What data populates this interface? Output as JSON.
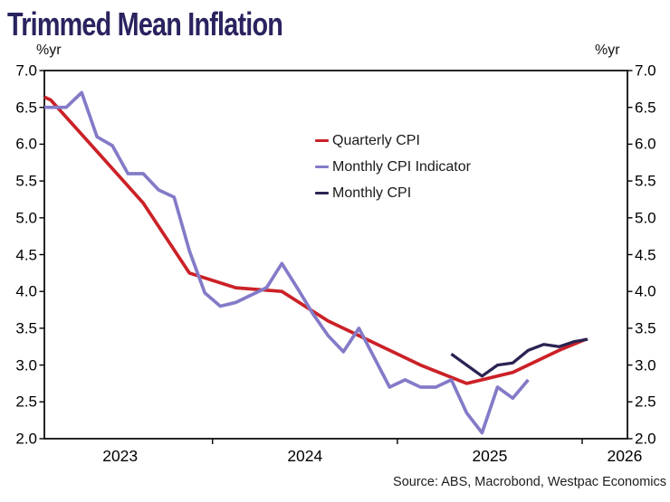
{
  "header": {
    "title": "Trimmed Mean Inflation"
  },
  "source_note": "Source: ABS, Macrobond, Westpac Economics",
  "chart_data": {
    "type": "line",
    "title": "Trimmed Mean Inflation",
    "y_unit_left": "%yr",
    "y_unit_right": "%yr",
    "grid": false,
    "legend_position": "inside-top-center",
    "y_range": [
      2.0,
      7.0
    ],
    "x_range": [
      2023.09,
      2026.245
    ],
    "y_ticks": [
      {
        "value": 7.0,
        "label": "7.0"
      },
      {
        "value": 6.5,
        "label": "6.5"
      },
      {
        "value": 6.0,
        "label": "6.0"
      },
      {
        "value": 5.5,
        "label": "5.5"
      },
      {
        "value": 5.0,
        "label": "5.0"
      },
      {
        "value": 4.5,
        "label": "4.5"
      },
      {
        "value": 4.0,
        "label": "4.0"
      },
      {
        "value": 3.5,
        "label": "3.5"
      },
      {
        "value": 3.0,
        "label": "3.0"
      },
      {
        "value": 2.5,
        "label": "2.5"
      },
      {
        "value": 2.0,
        "label": "2.0"
      }
    ],
    "x_boundary_ticks": [
      2024,
      2025,
      2026
    ],
    "x_labels": [
      {
        "pos": 2023.5,
        "label": "2023"
      },
      {
        "pos": 2024.5,
        "label": "2024"
      },
      {
        "pos": 2025.5,
        "label": "2025"
      },
      {
        "pos": 2026.23,
        "label": "2026"
      }
    ],
    "series": [
      {
        "name": "Quarterly CPI",
        "color": "#cb2127",
        "points": [
          [
            2023.09,
            6.64
          ],
          [
            2023.125,
            6.6
          ],
          [
            2023.375,
            5.9
          ],
          [
            2023.625,
            5.2
          ],
          [
            2023.875,
            4.25
          ],
          [
            2024.125,
            4.05
          ],
          [
            2024.375,
            4.0
          ],
          [
            2024.625,
            3.6
          ],
          [
            2024.875,
            3.3
          ],
          [
            2025.125,
            3.0
          ],
          [
            2025.375,
            2.75
          ],
          [
            2025.625,
            2.9
          ],
          [
            2025.875,
            3.2
          ],
          [
            2026.02,
            3.35
          ]
        ]
      },
      {
        "name": "Monthly CPI Indicator",
        "color": "#837bc8",
        "points": [
          [
            2023.09,
            6.5
          ],
          [
            2023.125,
            6.5
          ],
          [
            2023.208,
            6.5
          ],
          [
            2023.292,
            6.7
          ],
          [
            2023.375,
            6.1
          ],
          [
            2023.458,
            5.98
          ],
          [
            2023.542,
            5.6
          ],
          [
            2023.625,
            5.6
          ],
          [
            2023.708,
            5.38
          ],
          [
            2023.792,
            5.28
          ],
          [
            2023.875,
            4.55
          ],
          [
            2023.958,
            3.98
          ],
          [
            2024.042,
            3.8
          ],
          [
            2024.125,
            3.85
          ],
          [
            2024.208,
            3.95
          ],
          [
            2024.292,
            4.05
          ],
          [
            2024.375,
            4.38
          ],
          [
            2024.458,
            4.05
          ],
          [
            2024.542,
            3.7
          ],
          [
            2024.625,
            3.4
          ],
          [
            2024.708,
            3.18
          ],
          [
            2024.792,
            3.5
          ],
          [
            2024.875,
            3.1
          ],
          [
            2024.958,
            2.7
          ],
          [
            2025.042,
            2.8
          ],
          [
            2025.125,
            2.7
          ],
          [
            2025.208,
            2.7
          ],
          [
            2025.292,
            2.8
          ],
          [
            2025.375,
            2.35
          ],
          [
            2025.458,
            2.08
          ],
          [
            2025.542,
            2.7
          ],
          [
            2025.625,
            2.55
          ],
          [
            2025.708,
            2.8
          ]
        ]
      },
      {
        "name": "Monthly CPI",
        "color": "#2a2453",
        "points": [
          [
            2025.292,
            3.15
          ],
          [
            2025.375,
            3.0
          ],
          [
            2025.458,
            2.85
          ],
          [
            2025.542,
            3.0
          ],
          [
            2025.625,
            3.03
          ],
          [
            2025.708,
            3.2
          ],
          [
            2025.792,
            3.28
          ],
          [
            2025.875,
            3.25
          ],
          [
            2025.958,
            3.32
          ],
          [
            2026.03,
            3.35
          ]
        ]
      }
    ]
  }
}
